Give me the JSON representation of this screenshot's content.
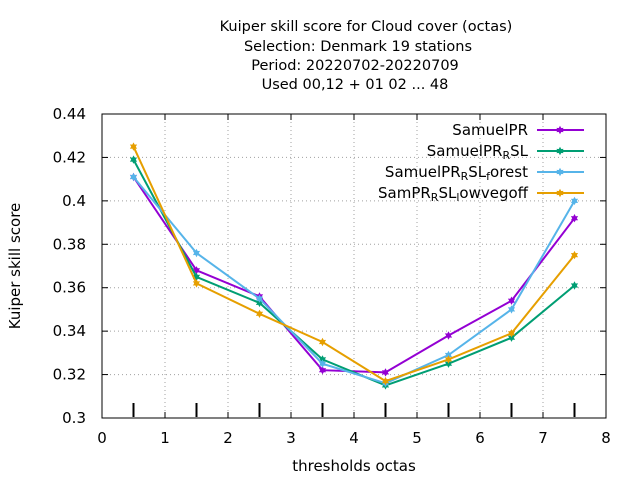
{
  "chart_data": {
    "type": "line",
    "title_lines": [
      "Kuiper skill score  for Cloud cover (octas)",
      "Selection: Denmark      19 stations",
      "Period: 20220702-20220709",
      "Used  00,12  + 01 02 ... 48"
    ],
    "xlabel": "thresholds octas",
    "ylabel": "Kuiper skill score",
    "xlim": [
      0,
      8
    ],
    "ylim": [
      0.3,
      0.44
    ],
    "xticks": [
      0,
      1,
      2,
      3,
      4,
      5,
      6,
      7,
      8
    ],
    "xtick_labels": [
      "0",
      "1",
      "2",
      "3",
      "4",
      "5",
      "6",
      "7",
      "8"
    ],
    "yticks": [
      0.3,
      0.32,
      0.34,
      0.36,
      0.38,
      0.4,
      0.42,
      0.44
    ],
    "ytick_labels": [
      "0.3",
      "0.32",
      "0.34",
      "0.36",
      "0.38",
      "0.4",
      "0.42",
      "0.44"
    ],
    "grid": true,
    "legend_position": "top-right",
    "x": [
      0.5,
      1.5,
      2.5,
      3.5,
      4.5,
      5.5,
      6.5,
      7.5
    ],
    "series": [
      {
        "name": "SamuelPR",
        "legend_parts": [
          {
            "t": "SamuelPR"
          }
        ],
        "color": "#9400d3",
        "values": [
          0.411,
          0.368,
          0.356,
          0.322,
          0.321,
          0.338,
          0.354,
          0.392
        ]
      },
      {
        "name": "SamuelPR_RSL",
        "legend_parts": [
          {
            "t": "SamuelPR"
          },
          {
            "t": "R",
            "sub": true
          },
          {
            "t": "SL"
          }
        ],
        "color": "#009e73",
        "values": [
          0.419,
          0.365,
          0.353,
          0.327,
          0.315,
          0.325,
          0.337,
          0.361
        ]
      },
      {
        "name": "SamuelPR_RSL_forest",
        "legend_parts": [
          {
            "t": "SamuelPR"
          },
          {
            "t": "R",
            "sub": true
          },
          {
            "t": "SL"
          },
          {
            "t": "f",
            "sub": true
          },
          {
            "t": "orest"
          }
        ],
        "color": "#56b4e9",
        "values": [
          0.411,
          0.376,
          0.355,
          0.325,
          0.316,
          0.329,
          0.35,
          0.4
        ]
      },
      {
        "name": "SamPR_RSL_lowvegoff",
        "legend_parts": [
          {
            "t": "SamPR"
          },
          {
            "t": "R",
            "sub": true
          },
          {
            "t": "SL"
          },
          {
            "t": "l",
            "sub": true
          },
          {
            "t": "owvegoff"
          }
        ],
        "color": "#e69f00",
        "values": [
          0.425,
          0.362,
          0.348,
          0.335,
          0.317,
          0.327,
          0.339,
          0.375
        ]
      }
    ]
  }
}
